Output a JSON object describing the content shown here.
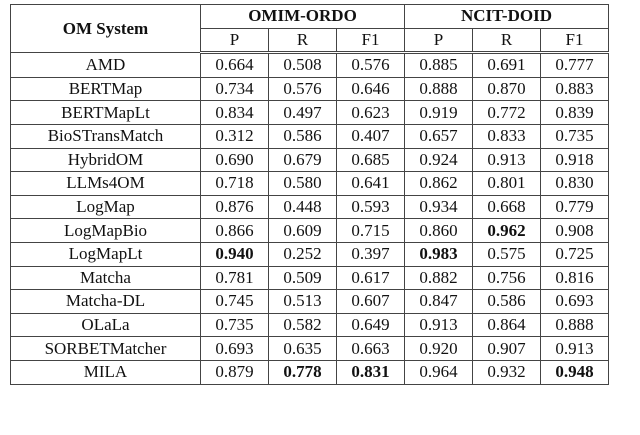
{
  "table": {
    "header": {
      "system": "OM System",
      "groups": [
        "OMIM-ORDO",
        "NCIT-DOID"
      ],
      "metrics": [
        "P",
        "R",
        "F1",
        "P",
        "R",
        "F1"
      ]
    },
    "rows": [
      [
        "AMD",
        "0.664",
        "0.508",
        "0.576",
        "0.885",
        "0.691",
        "0.777"
      ],
      [
        "BERTMap",
        "0.734",
        "0.576",
        "0.646",
        "0.888",
        "0.870",
        "0.883"
      ],
      [
        "BERTMapLt",
        "0.834",
        "0.497",
        "0.623",
        "0.919",
        "0.772",
        "0.839"
      ],
      [
        "BioSTransMatch",
        "0.312",
        "0.586",
        "0.407",
        "0.657",
        "0.833",
        "0.735"
      ],
      [
        "HybridOM",
        "0.690",
        "0.679",
        "0.685",
        "0.924",
        "0.913",
        "0.918"
      ],
      [
        "LLMs4OM",
        "0.718",
        "0.580",
        "0.641",
        "0.862",
        "0.801",
        "0.830"
      ],
      [
        "LogMap",
        "0.876",
        "0.448",
        "0.593",
        "0.934",
        "0.668",
        "0.779"
      ],
      [
        "LogMapBio",
        "0.866",
        "0.609",
        "0.715",
        "0.860",
        {
          "text": "0.962",
          "bold": true
        },
        "0.908"
      ],
      [
        "LogMapLt",
        {
          "text": "0.940",
          "bold": true
        },
        "0.252",
        "0.397",
        {
          "text": "0.983",
          "bold": true
        },
        "0.575",
        "0.725"
      ],
      [
        "Matcha",
        "0.781",
        "0.509",
        "0.617",
        "0.882",
        "0.756",
        "0.816"
      ],
      [
        "Matcha-DL",
        "0.745",
        "0.513",
        "0.607",
        "0.847",
        "0.586",
        "0.693"
      ],
      [
        "OLaLa",
        "0.735",
        "0.582",
        "0.649",
        "0.913",
        "0.864",
        "0.888"
      ],
      [
        "SORBETMatcher",
        "0.693",
        "0.635",
        "0.663",
        "0.920",
        "0.907",
        "0.913"
      ],
      [
        "MILA",
        "0.879",
        {
          "text": "0.778",
          "bold": true
        },
        {
          "text": "0.831",
          "bold": true
        },
        "0.964",
        "0.932",
        {
          "text": "0.948",
          "bold": true
        }
      ]
    ]
  }
}
